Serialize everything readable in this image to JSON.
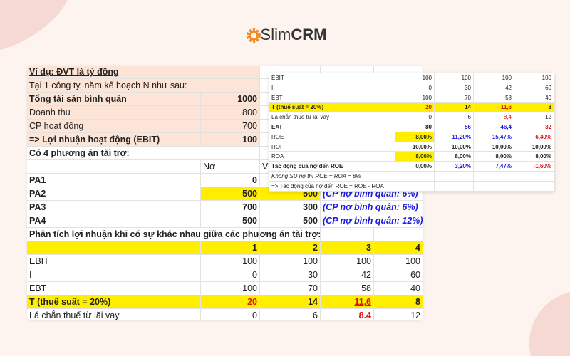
{
  "header": {
    "brand_light": "Slim",
    "brand_bold": "CRM"
  },
  "main_sheet": {
    "rows": [
      [
        "Ví dụ: ĐVT là tỷ đồng",
        null,
        null,
        null,
        null
      ],
      [
        "Tại 1 công ty, năm kế hoạch N như sau:",
        null,
        null,
        null,
        null
      ],
      [
        "Tổng tài sản bình quân",
        "1000",
        null,
        null,
        null
      ],
      [
        "Doanh thu",
        "800",
        null,
        null,
        null
      ],
      [
        "CP hoạt động",
        "700",
        null,
        null,
        null
      ],
      [
        " => Lợi nhuận hoạt động (EBIT)",
        "100",
        null,
        null,
        null
      ],
      [
        "Có 4 phương án tài trợ:",
        null,
        null,
        null,
        null
      ],
      [
        null,
        "Nợ",
        "VCSH",
        null,
        null
      ],
      [
        "PA1",
        "0",
        null,
        null,
        null
      ],
      [
        "PA2",
        "500",
        "500",
        "(CP nợ bình quân: 6%)",
        null
      ],
      [
        "PA3",
        "700",
        "300",
        "(CP nợ bình quân: 6%)",
        null
      ],
      [
        "PA4",
        "500",
        "500",
        "(CP nợ bình quân: 12%)",
        null
      ],
      [
        "Phân tích lợi nhuận khi có sự khác nhau giữa các phương án tài trợ:",
        null,
        null,
        null,
        null
      ],
      [
        null,
        "1",
        "2",
        "3",
        "4"
      ],
      [
        "EBIT",
        "100",
        "100",
        "100",
        "100"
      ],
      [
        "I",
        "0",
        "30",
        "42",
        "60"
      ],
      [
        "EBT",
        "100",
        "70",
        "58",
        "40"
      ],
      [
        "T (thuế suất = 20%)",
        "20",
        "14",
        "11,6",
        "8"
      ],
      [
        "Lá chắn thuế từ lãi vay",
        "0",
        "6",
        "8.4",
        "12"
      ]
    ]
  },
  "overlay_sheet": {
    "rows": [
      [
        "EBIT",
        "100",
        "100",
        "100",
        "100"
      ],
      [
        "I",
        "0",
        "30",
        "42",
        "60"
      ],
      [
        "EBT",
        "100",
        "70",
        "58",
        "40"
      ],
      [
        "T (thuế suất = 20%)",
        "20",
        "14",
        "11,6",
        "8"
      ],
      [
        "Lá chắn thuế từ lãi vay",
        "0",
        "6",
        "8,4",
        "12"
      ],
      [
        "EAT",
        "80",
        "56",
        "46,4",
        "32"
      ],
      [
        "ROE",
        "8,00%",
        "11,20%",
        "15,47%",
        "6,40%"
      ],
      [
        "ROI",
        "10,00%",
        "10,00%",
        "10,00%",
        "10,00%"
      ],
      [
        "ROA",
        "8,00%",
        "8,00%",
        "8,00%",
        "8,00%"
      ],
      [
        "Tác động của nợ đến ROE",
        "0,00%",
        "3,20%",
        "7,47%",
        "-1,60%"
      ],
      [
        "Không SD nợ thì ROE = ROA = 8%",
        null,
        null,
        null,
        null
      ],
      [
        " => Tác động của nợ đến ROE = ROE - ROA",
        null,
        null,
        null,
        null
      ]
    ]
  }
}
